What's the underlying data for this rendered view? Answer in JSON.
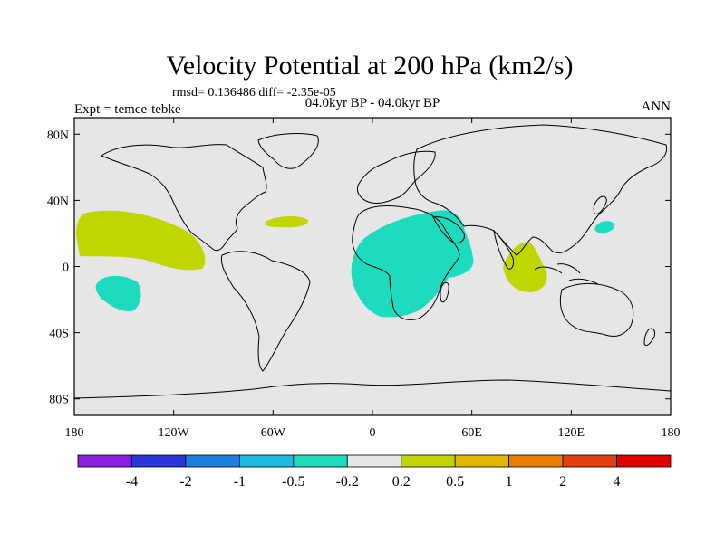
{
  "title": "Velocity Potential at 200 hPa (km2/s)",
  "stats": "rmsd= 0.136486 diff= -2.35e-05",
  "left_label": "Expt = temce-tebke",
  "center_label": "04.0kyr BP - 04.0kyr BP",
  "right_label": "ANN",
  "map": {
    "lon_range": [
      -180,
      180
    ],
    "lat_range": [
      -90,
      90
    ],
    "lat_ticks": [
      {
        "value": 80,
        "label": "80N"
      },
      {
        "value": 40,
        "label": "40N"
      },
      {
        "value": 0,
        "label": "0"
      },
      {
        "value": -40,
        "label": "40S"
      },
      {
        "value": -80,
        "label": "80S"
      }
    ],
    "lon_ticks": [
      {
        "value": -180,
        "label": "180"
      },
      {
        "value": -120,
        "label": "120W"
      },
      {
        "value": -60,
        "label": "60W"
      },
      {
        "value": 0,
        "label": "0"
      },
      {
        "value": 60,
        "label": "60E"
      },
      {
        "value": 120,
        "label": "120E"
      },
      {
        "value": 180,
        "label": "180"
      }
    ],
    "colors": {
      "background": "#e6e6e6",
      "pos_0_2_to_0_5": "#bfd600",
      "neg_0_2_to_0_5": "#1ddbbe"
    }
  },
  "colorbar": {
    "colors": [
      "#8a1fe0",
      "#2b35d8",
      "#1d7fe0",
      "#1cb9e3",
      "#1ddbbe",
      "#e6e6e6",
      "#bfd600",
      "#e2b500",
      "#e77c00",
      "#e2400c",
      "#e00000"
    ],
    "labels": [
      "-4",
      "-2",
      "-1",
      "-0.5",
      "-0.2",
      "0.2",
      "0.5",
      "1",
      "2",
      "4"
    ]
  }
}
